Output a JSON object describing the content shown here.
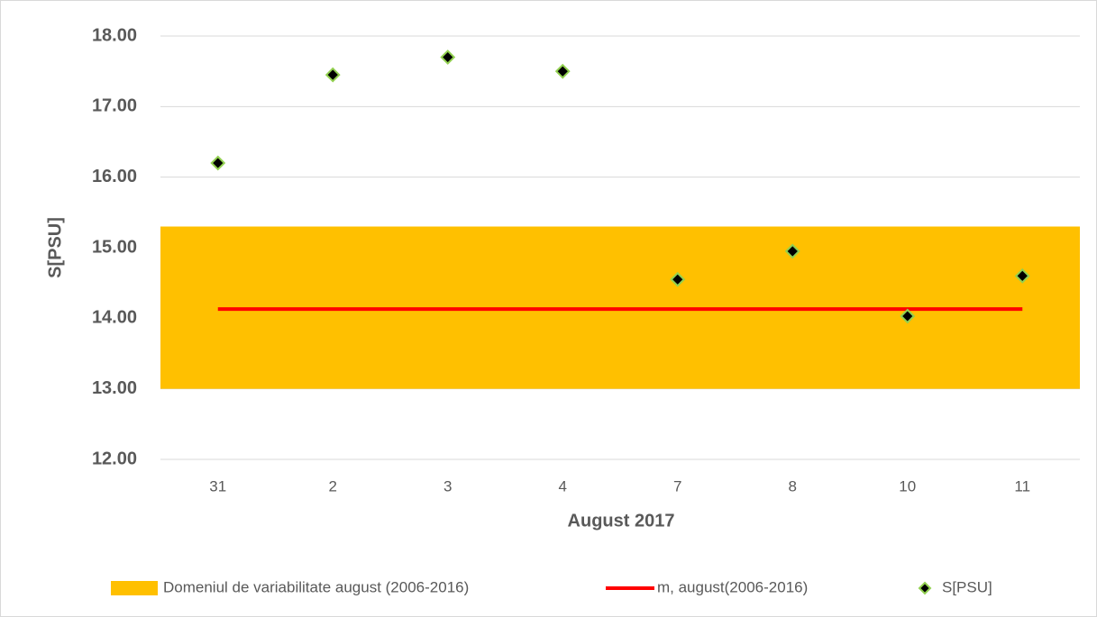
{
  "chart_data": {
    "type": "scatter",
    "x_label": "August 2017",
    "y_label": "S[PSU]",
    "categories": [
      "31",
      "2",
      "3",
      "4",
      "7",
      "8",
      "10",
      "11"
    ],
    "band": {
      "name": "Domeniul de variabilitate august (2006-2016)",
      "color": "#ffc000",
      "range": [
        13.0,
        15.3
      ]
    },
    "mean_line": {
      "name": "m, august(2006-2016)",
      "color": "#ff0000",
      "value": 14.13
    },
    "series": [
      {
        "name": "S[PSU]",
        "color": "#000000",
        "edge_color": "#92d050",
        "values": [
          16.2,
          17.45,
          17.7,
          17.5,
          14.55,
          14.95,
          14.03,
          14.6
        ]
      }
    ],
    "ylim": [
      12,
      18
    ],
    "yticks": [
      {
        "value": 12,
        "label": "12.00"
      },
      {
        "value": 13,
        "label": "13.00"
      },
      {
        "value": 14,
        "label": "14.00"
      },
      {
        "value": 15,
        "label": "15.00"
      },
      {
        "value": 16,
        "label": "16.00"
      },
      {
        "value": 17,
        "label": "17.00"
      },
      {
        "value": 18,
        "label": "18.00"
      }
    ],
    "grid": true
  }
}
